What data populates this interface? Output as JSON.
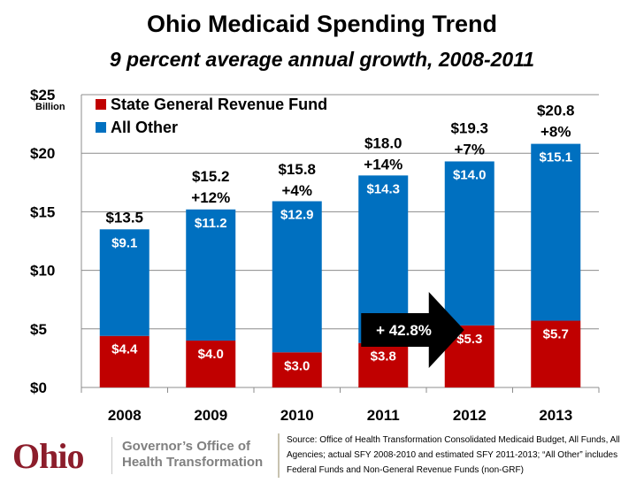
{
  "header": {
    "title": "Ohio Medicaid Spending Trend",
    "subtitle": "9 percent average annual growth, 2008-2011"
  },
  "chart_data": {
    "type": "bar",
    "stacked": true,
    "title": "Ohio Medicaid Spending Trend",
    "subtitle": "9 percent average annual growth, 2008-2011",
    "xlabel": "",
    "ylabel": "",
    "y_unit_label": "Billion",
    "ylim": [
      0,
      25
    ],
    "yticks": [
      0,
      5,
      10,
      15,
      20,
      25
    ],
    "ytick_labels": [
      "$0",
      "$5",
      "$10",
      "$15",
      "$20",
      "$25"
    ],
    "grid": true,
    "legend_position": "top-left",
    "categories": [
      "2008",
      "2009",
      "2010",
      "2011",
      "2012",
      "2013"
    ],
    "series": [
      {
        "name": "State General Revenue Fund",
        "color": "#C00000",
        "values": [
          4.4,
          4.0,
          3.0,
          3.8,
          5.3,
          5.7
        ],
        "labels": [
          "$4.4",
          "$4.0",
          "$3.0",
          "$3.8",
          "$5.3",
          "$5.7"
        ]
      },
      {
        "name": "All Other",
        "color": "#0070C0",
        "values": [
          9.1,
          11.2,
          12.9,
          14.3,
          14.0,
          15.1
        ],
        "labels": [
          "$9.1",
          "$11.2",
          "$12.9",
          "$14.3",
          "$14.0",
          "$15.1"
        ]
      }
    ],
    "totals": [
      13.5,
      15.2,
      15.8,
      18.0,
      19.3,
      20.8
    ],
    "total_labels": [
      "$13.5",
      "$15.2",
      "$15.8",
      "$18.0",
      "$19.3",
      "$20.8"
    ],
    "growth_labels": [
      "",
      "+12%",
      "+4%",
      "+14%",
      "+7%",
      "+8%"
    ],
    "annotations": [
      {
        "type": "arrow",
        "text": "+ 42.8%",
        "from_category": "2011",
        "to_category": "2012",
        "color": "#000000"
      }
    ]
  },
  "footer": {
    "logo_word": "Ohio",
    "office_line1": "Governor’s Office of",
    "office_line2": "Health Transformation",
    "source_text": "Source: Office of Health Transformation Consolidated Medicaid Budget, All Funds, All Agencies; actual SFY 2008-2010 and estimated SFY 2011-2013; “All Other” includes  Federal Funds and Non-General Revenue Funds (non-GRF)"
  }
}
